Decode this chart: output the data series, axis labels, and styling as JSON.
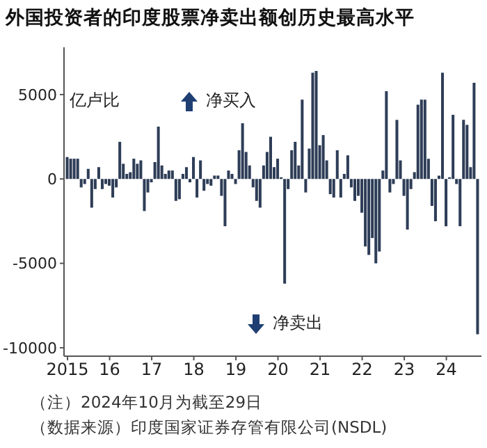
{
  "chart_data": {
    "type": "bar",
    "title": "外国投资者的印度股票净卖出额创历史最高水平",
    "ylabel": "亿卢比",
    "annotations": [
      "净买入",
      "净卖出",
      "（注）2024年10月为截至29日",
      "（数据来源）印度国家证券存管有限公司(NSDL)"
    ],
    "x": [
      "2015-01",
      "2015-02",
      "2015-03",
      "2015-04",
      "2015-05",
      "2015-06",
      "2015-07",
      "2015-08",
      "2015-09",
      "2015-10",
      "2015-11",
      "2015-12",
      "2016-01",
      "2016-02",
      "2016-03",
      "2016-04",
      "2016-05",
      "2016-06",
      "2016-07",
      "2016-08",
      "2016-09",
      "2016-10",
      "2016-11",
      "2016-12",
      "2017-01",
      "2017-02",
      "2017-03",
      "2017-04",
      "2017-05",
      "2017-06",
      "2017-07",
      "2017-08",
      "2017-09",
      "2017-10",
      "2017-11",
      "2017-12",
      "2018-01",
      "2018-02",
      "2018-03",
      "2018-04",
      "2018-05",
      "2018-06",
      "2018-07",
      "2018-08",
      "2018-09",
      "2018-10",
      "2018-11",
      "2018-12",
      "2019-01",
      "2019-02",
      "2019-03",
      "2019-04",
      "2019-05",
      "2019-06",
      "2019-07",
      "2019-08",
      "2019-09",
      "2019-10",
      "2019-11",
      "2019-12",
      "2020-01",
      "2020-02",
      "2020-03",
      "2020-04",
      "2020-05",
      "2020-06",
      "2020-07",
      "2020-08",
      "2020-09",
      "2020-10",
      "2020-11",
      "2020-12",
      "2021-01",
      "2021-02",
      "2021-03",
      "2021-04",
      "2021-05",
      "2021-06",
      "2021-07",
      "2021-08",
      "2021-09",
      "2021-10",
      "2021-11",
      "2021-12",
      "2022-01",
      "2022-02",
      "2022-03",
      "2022-04",
      "2022-05",
      "2022-06",
      "2022-07",
      "2022-08",
      "2022-09",
      "2022-10",
      "2022-11",
      "2022-12",
      "2023-01",
      "2023-02",
      "2023-03",
      "2023-04",
      "2023-05",
      "2023-06",
      "2023-07",
      "2023-08",
      "2023-09",
      "2023-10",
      "2023-11",
      "2023-12",
      "2024-01",
      "2024-02",
      "2024-03",
      "2024-04",
      "2024-05",
      "2024-06",
      "2024-07",
      "2024-08",
      "2024-09",
      "2024-10"
    ],
    "values": [
      1300,
      1200,
      1200,
      1200,
      -500,
      -300,
      600,
      -1700,
      -600,
      700,
      -600,
      -300,
      -400,
      -1100,
      -500,
      2200,
      900,
      300,
      400,
      1200,
      900,
      1100,
      -1900,
      -800,
      -200,
      1000,
      3100,
      800,
      300,
      500,
      500,
      -1300,
      -1200,
      300,
      700,
      -200,
      1300,
      -1100,
      1100,
      -700,
      -300,
      -400,
      200,
      200,
      -1000,
      -2800,
      500,
      300,
      -300,
      1700,
      3300,
      1600,
      800,
      -500,
      -1300,
      -1700,
      800,
      1600,
      2500,
      700,
      1200,
      100,
      -6200,
      -600,
      1700,
      2200,
      800,
      4700,
      -800,
      1800,
      6300,
      6400,
      2000,
      2600,
      1100,
      -900,
      -1100,
      1700,
      -1100,
      300,
      1400,
      -500,
      -1300,
      -1000,
      -2000,
      -4000,
      -4500,
      -3500,
      -5000,
      -4300,
      500,
      5200,
      -800,
      -300,
      3500,
      1100,
      -1000,
      -3000,
      -600,
      400,
      4400,
      4700,
      4700,
      1200,
      -1600,
      -2500,
      200,
      6300,
      -2800,
      100,
      3800,
      -300,
      -2800,
      3500,
      3200,
      700,
      5700,
      -9200
    ],
    "color": "#2e3d57",
    "xlim": [
      "2014-12",
      "2024-11"
    ],
    "xticks": [
      {
        "value": "2015-01",
        "label": "2015"
      },
      {
        "value": "2016-01",
        "label": "16"
      },
      {
        "value": "2017-01",
        "label": "17"
      },
      {
        "value": "2018-01",
        "label": "18"
      },
      {
        "value": "2019-01",
        "label": "19"
      },
      {
        "value": "2020-01",
        "label": "20"
      },
      {
        "value": "2021-01",
        "label": "21"
      },
      {
        "value": "2022-01",
        "label": "22"
      },
      {
        "value": "2023-01",
        "label": "23"
      },
      {
        "value": "2024-01",
        "label": "24"
      }
    ],
    "ylim": [
      -10500,
      7800
    ],
    "yticks": [
      -10000,
      -5000,
      0,
      5000
    ],
    "grid": false,
    "legend": false
  }
}
